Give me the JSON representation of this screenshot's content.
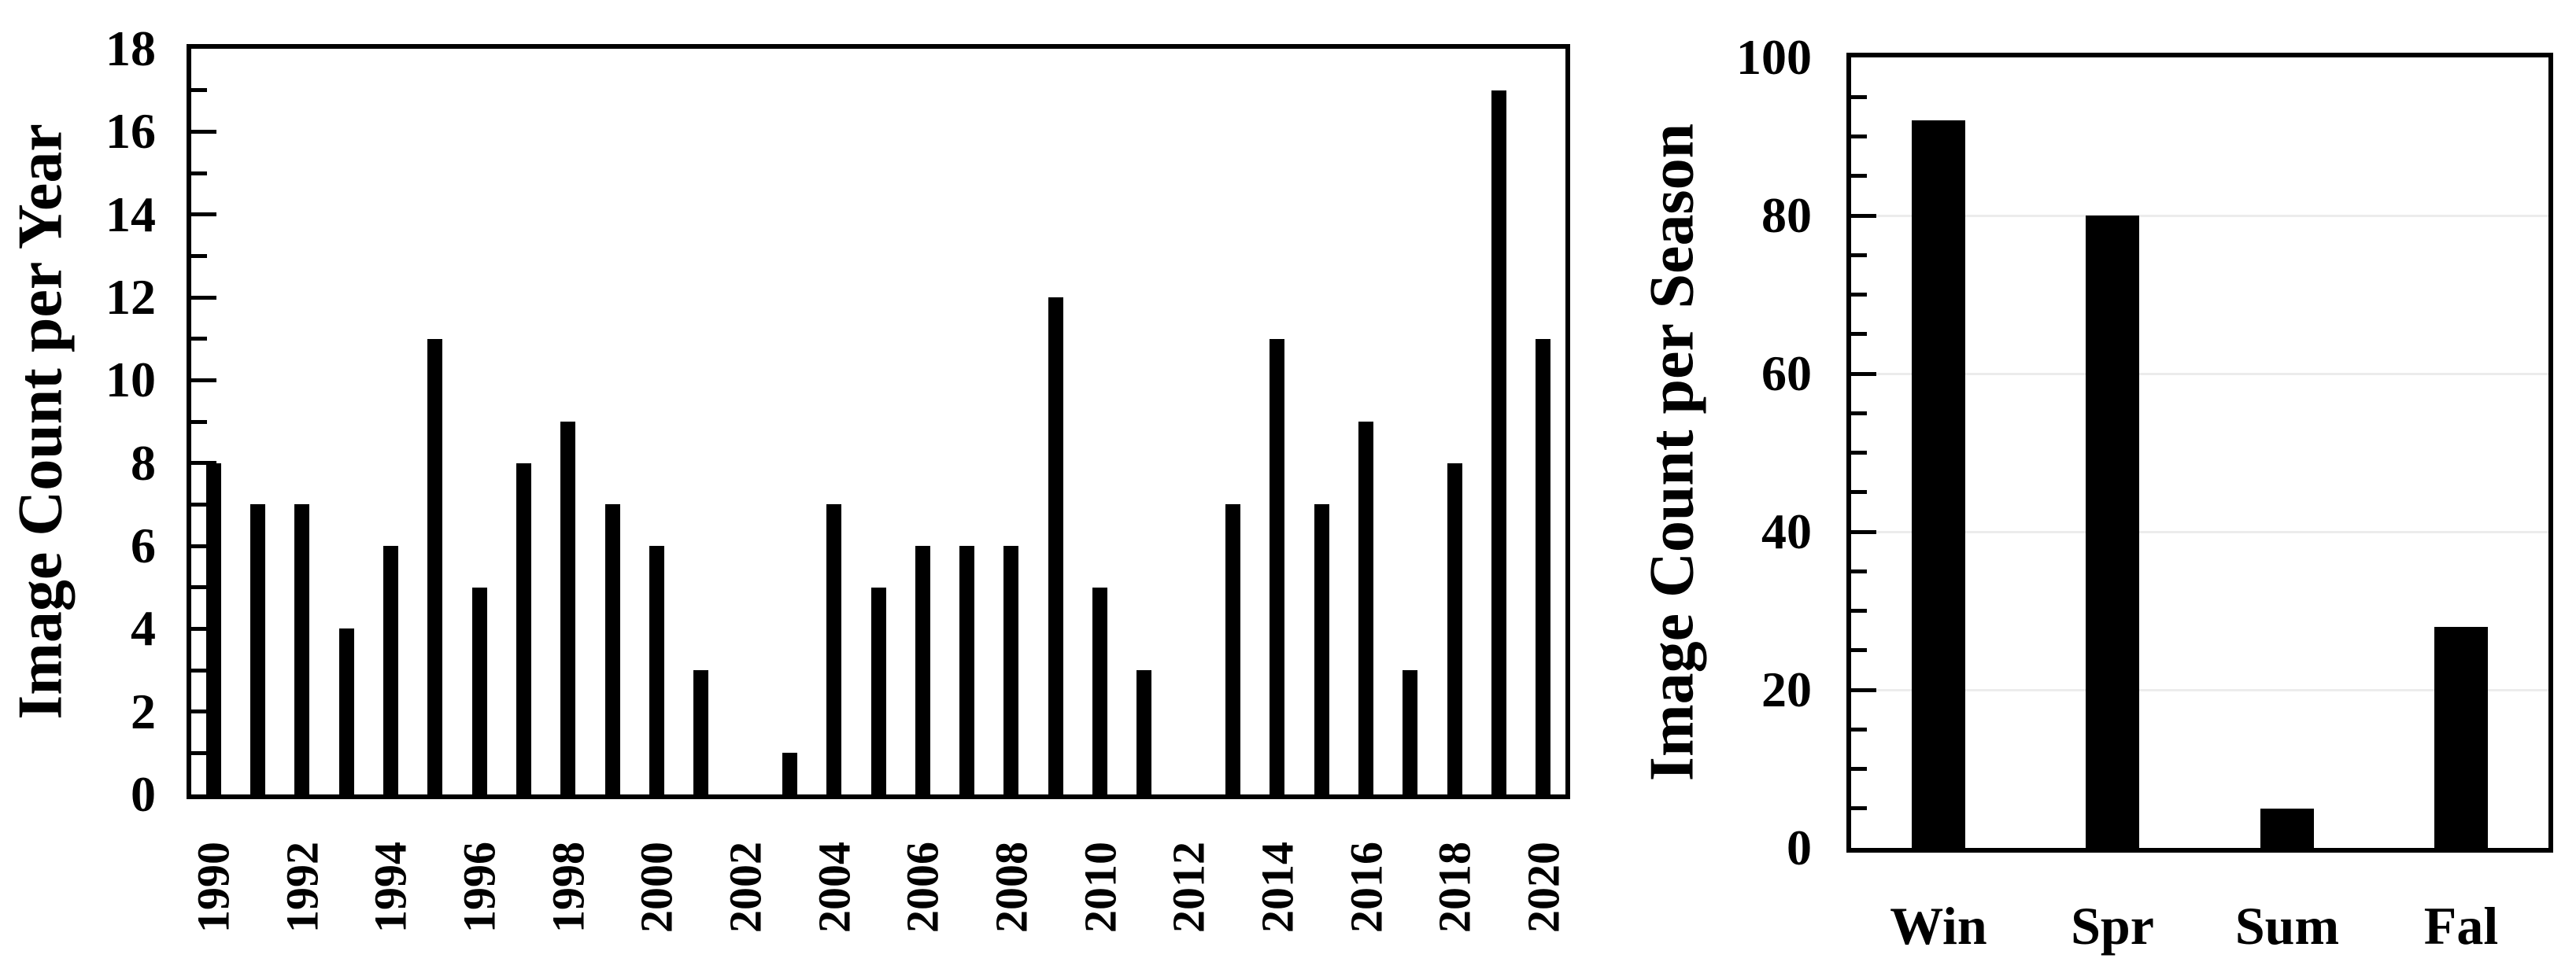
{
  "figure": {
    "background": "#ffffff",
    "bar_color": "#000000",
    "axis_color": "#000000",
    "gridline_color": "#ececec"
  },
  "chart_data": [
    {
      "type": "bar",
      "title": "",
      "xlabel": "",
      "ylabel": "Image Count per Year",
      "ylim": [
        0,
        18
      ],
      "ytick_step": 2,
      "minor_tick_step": 1,
      "grid": false,
      "legend": "none",
      "x_label_every": 2,
      "categories": [
        "1990",
        "1991",
        "1992",
        "1993",
        "1994",
        "1995",
        "1996",
        "1997",
        "1998",
        "1999",
        "2000",
        "2001",
        "2002",
        "2003",
        "2004",
        "2005",
        "2006",
        "2007",
        "2008",
        "2009",
        "2010",
        "2011",
        "2012",
        "2013",
        "2014",
        "2015",
        "2016",
        "2017",
        "2018",
        "2019",
        "2020"
      ],
      "values": [
        8,
        7,
        7,
        4,
        6,
        11,
        5,
        8,
        9,
        7,
        6,
        3,
        0,
        1,
        7,
        5,
        6,
        6,
        6,
        12,
        5,
        3,
        0,
        7,
        11,
        7,
        9,
        3,
        8,
        17,
        11
      ]
    },
    {
      "type": "bar",
      "title": "",
      "xlabel": "",
      "ylabel": "Image Count per Season",
      "ylim": [
        0,
        100
      ],
      "ytick_step": 20,
      "minor_tick_step": 5,
      "grid": true,
      "legend": "none",
      "x_label_every": 1,
      "categories": [
        "Win",
        "Spr",
        "Sum",
        "Fal"
      ],
      "values": [
        92,
        80,
        5,
        28
      ]
    }
  ]
}
